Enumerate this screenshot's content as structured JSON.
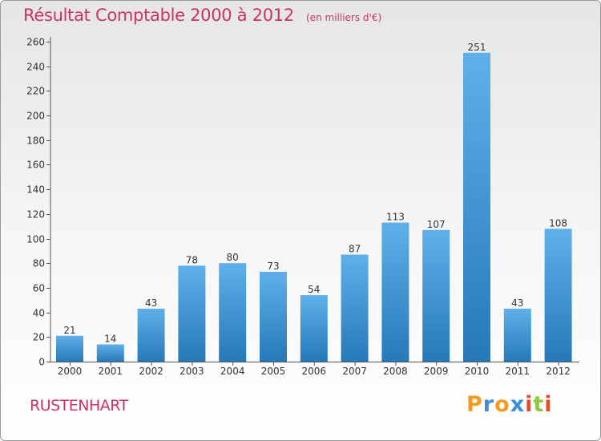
{
  "header": {
    "title": "Résultat Comptable 2000 à 2012",
    "unit": "(en milliers d'€)"
  },
  "footer": {
    "commune": "RUSTENHART",
    "brand": "Proxiti",
    "brand_letters": [
      "P",
      "r",
      "o",
      "x",
      "i",
      "t",
      "i"
    ],
    "brand_colors": [
      "#f39c1f",
      "#3a8fd9",
      "#f39c1f",
      "#3a8fd9",
      "#e84b2a",
      "#8dc63f",
      "#e84b2a"
    ]
  },
  "colors": {
    "title": "#c8336a",
    "bar_light": "#5fb0ea",
    "bar_dark": "#2679b9"
  },
  "chart_data": {
    "type": "bar",
    "title": "Résultat Comptable 2000 à 2012",
    "subtitle": "(en milliers d'€)",
    "xlabel": "",
    "ylabel": "",
    "categories": [
      "2000",
      "2001",
      "2002",
      "2003",
      "2004",
      "2005",
      "2006",
      "2007",
      "2008",
      "2009",
      "2010",
      "2011",
      "2012"
    ],
    "values": [
      21,
      14,
      43,
      78,
      80,
      73,
      54,
      87,
      113,
      107,
      251,
      43,
      108
    ],
    "ylim": [
      0,
      260
    ],
    "yticks": [
      0,
      20,
      40,
      60,
      80,
      100,
      120,
      140,
      160,
      180,
      200,
      220,
      240,
      260
    ],
    "grid": false,
    "legend": "none"
  }
}
